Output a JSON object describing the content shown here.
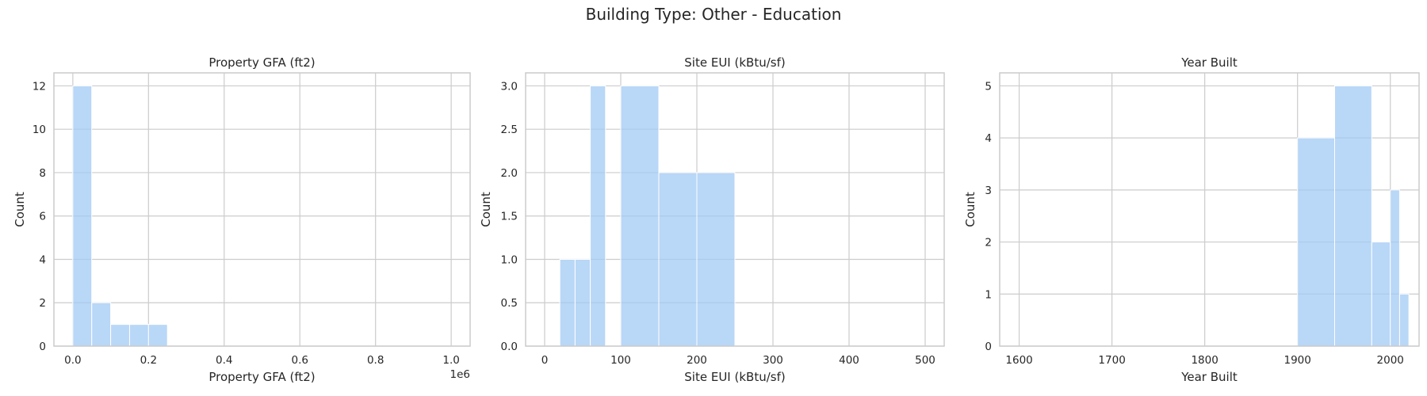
{
  "figure": {
    "title": "Building Type: Other - Education"
  },
  "chart_data": [
    {
      "type": "bar",
      "title": "Property GFA (ft2)",
      "xlabel": "Property GFA (ft2)",
      "ylabel": "Count",
      "x_offset_label": "1e6",
      "xlim": [
        -50000,
        1050000
      ],
      "ylim": [
        0,
        12.6
      ],
      "xticks": [
        0,
        200000,
        400000,
        600000,
        800000,
        1000000
      ],
      "xtick_labels": [
        "0.0",
        "0.2",
        "0.4",
        "0.6",
        "0.8",
        "1.0"
      ],
      "yticks": [
        0,
        2,
        4,
        6,
        8,
        10,
        12
      ],
      "ytick_labels": [
        "0",
        "2",
        "4",
        "6",
        "8",
        "10",
        "12"
      ],
      "bins": [
        {
          "x0": 0,
          "x1": 50000,
          "count": 12
        },
        {
          "x0": 50000,
          "x1": 100000,
          "count": 2
        },
        {
          "x0": 100000,
          "x1": 150000,
          "count": 1
        },
        {
          "x0": 150000,
          "x1": 200000,
          "count": 1
        },
        {
          "x0": 200000,
          "x1": 250000,
          "count": 1
        }
      ],
      "grid": true
    },
    {
      "type": "bar",
      "title": "Site EUI (kBtu/sf)",
      "xlabel": "Site EUI (kBtu/sf)",
      "ylabel": "Count",
      "x_offset_label": "",
      "xlim": [
        -25,
        525
      ],
      "ylim": [
        0,
        3.15
      ],
      "xticks": [
        0,
        100,
        200,
        300,
        400,
        500
      ],
      "xtick_labels": [
        "0",
        "100",
        "200",
        "300",
        "400",
        "500"
      ],
      "yticks": [
        0,
        0.5,
        1,
        1.5,
        2,
        2.5,
        3
      ],
      "ytick_labels": [
        "0.0",
        "0.5",
        "1.0",
        "1.5",
        "2.0",
        "2.5",
        "3.0"
      ],
      "bins": [
        {
          "x0": 20,
          "x1": 40,
          "count": 1
        },
        {
          "x0": 40,
          "x1": 60,
          "count": 1
        },
        {
          "x0": 60,
          "x1": 80,
          "count": 3
        },
        {
          "x0": 100,
          "x1": 150,
          "count": 3
        },
        {
          "x0": 150,
          "x1": 200,
          "count": 2
        },
        {
          "x0": 200,
          "x1": 250,
          "count": 2
        }
      ],
      "grid": true
    },
    {
      "type": "bar",
      "title": "Year Built",
      "xlabel": "Year Built",
      "ylabel": "Count",
      "x_offset_label": "",
      "xlim": [
        1579,
        2031
      ],
      "ylim": [
        0,
        5.25
      ],
      "xticks": [
        1600,
        1700,
        1800,
        1900,
        2000
      ],
      "xtick_labels": [
        "1600",
        "1700",
        "1800",
        "1900",
        "2000"
      ],
      "yticks": [
        0,
        1,
        2,
        3,
        4,
        5
      ],
      "ytick_labels": [
        "0",
        "1",
        "2",
        "3",
        "4",
        "5"
      ],
      "bins": [
        {
          "x0": 1900,
          "x1": 1940,
          "count": 4
        },
        {
          "x0": 1940,
          "x1": 1980,
          "count": 5
        },
        {
          "x0": 1980,
          "x1": 2000,
          "count": 2
        },
        {
          "x0": 2000,
          "x1": 2010,
          "count": 3
        },
        {
          "x0": 2010,
          "x1": 2020,
          "count": 1
        }
      ],
      "grid": true
    }
  ]
}
